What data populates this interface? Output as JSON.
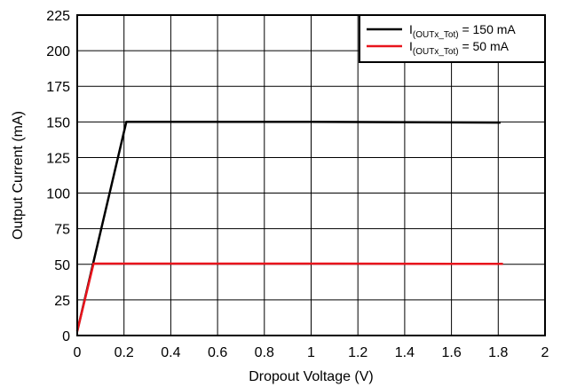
{
  "chart_data": {
    "type": "line",
    "xlabel": "Dropout Voltage (V)",
    "ylabel": "Output Current (mA)",
    "xlim": [
      0,
      2
    ],
    "ylim": [
      0,
      225
    ],
    "x_ticks": [
      0,
      0.2,
      0.4,
      0.6,
      0.8,
      1,
      1.2,
      1.4,
      1.6,
      1.8,
      2
    ],
    "x_tick_labels": [
      "0",
      "0.2",
      "0.4",
      "0.6",
      "0.8",
      "1",
      "1.2",
      "1.4",
      "1.6",
      "1.8",
      "2"
    ],
    "y_ticks": [
      0,
      25,
      50,
      75,
      100,
      125,
      150,
      175,
      200,
      225
    ],
    "y_tick_labels": [
      "0",
      "25",
      "50",
      "75",
      "100",
      "125",
      "150",
      "175",
      "200",
      "225"
    ],
    "grid": true,
    "legend_position": "top-right",
    "series": [
      {
        "name": "I(OUTx_Tot) = 150 mA",
        "legend_main": "I",
        "legend_sub": "(OUTx_Tot)",
        "legend_tail": " = 150 mA",
        "color": "#000000",
        "x": [
          0,
          0.21,
          1.0,
          1.81
        ],
        "y": [
          3,
          150,
          150,
          149.5
        ]
      },
      {
        "name": "I(OUTx_Tot) = 50 mA",
        "legend_main": "I",
        "legend_sub": "(OUTx_Tot)",
        "legend_tail": " = 50 mA",
        "color": "#e8141c",
        "x": [
          0,
          0.07,
          1.0,
          1.82
        ],
        "y": [
          3,
          50.5,
          50.5,
          50.3
        ]
      }
    ]
  }
}
